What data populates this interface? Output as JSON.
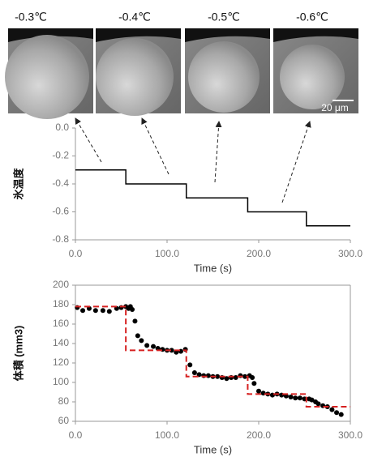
{
  "images": [
    {
      "label": "-0.3℃"
    },
    {
      "label": "-0.4℃"
    },
    {
      "label": "-0.5℃"
    },
    {
      "label": "-0.6℃"
    }
  ],
  "scale_bar": "20 μm",
  "chart_data": [
    {
      "type": "line",
      "ylabel": "氷温度",
      "xlabel": "Time (s)",
      "xlim": [
        0,
        300
      ],
      "xticks": [
        {
          "value": 0,
          "label": "0.0"
        },
        {
          "value": 100,
          "label": "100.0"
        },
        {
          "value": 200,
          "label": "200.0"
        },
        {
          "value": 300,
          "label": "300.0"
        }
      ],
      "ylim": [
        -0.8,
        0
      ],
      "yticks": [
        {
          "value": 0,
          "label": "0.0"
        },
        -0.2,
        -0.4,
        -0.6,
        -0.8
      ],
      "series": [
        {
          "type": "line",
          "color": "#000000",
          "x": [
            0,
            55,
            55,
            121,
            121,
            188,
            188,
            252,
            252,
            300
          ],
          "values": [
            -0.3,
            -0.3,
            -0.4,
            -0.4,
            -0.5,
            -0.5,
            -0.6,
            -0.6,
            -0.7,
            -0.7
          ]
        }
      ]
    },
    {
      "type": "scatter",
      "ylabel": "体積 (mm3)",
      "xlabel": "Time (s)",
      "xlim": [
        0,
        300
      ],
      "xticks": [
        {
          "value": 0,
          "label": "0.0"
        },
        {
          "value": 100,
          "label": "100.0"
        },
        {
          "value": 200,
          "label": "200.0"
        },
        {
          "value": 300,
          "label": "300.0"
        }
      ],
      "ylim": [
        60,
        200
      ],
      "yticks": [
        60,
        80,
        100,
        120,
        140,
        160,
        180,
        200
      ],
      "series": [
        {
          "type": "scatter",
          "color": "#000000",
          "x": [
            2,
            8,
            15,
            22,
            30,
            37,
            45,
            50,
            55,
            58,
            60,
            62,
            65,
            68,
            72,
            78,
            85,
            90,
            95,
            100,
            105,
            110,
            115,
            120,
            125,
            130,
            135,
            140,
            145,
            150,
            155,
            160,
            165,
            170,
            175,
            180,
            185,
            190,
            193,
            195,
            200,
            205,
            210,
            215,
            220,
            225,
            230,
            235,
            240,
            245,
            250,
            255,
            258,
            262,
            265,
            270,
            275,
            280,
            285,
            290
          ],
          "values": [
            177,
            174,
            176,
            174,
            174,
            173,
            176,
            177,
            178,
            176,
            178,
            175,
            163,
            148,
            143,
            138,
            137,
            135,
            134,
            133,
            133,
            131,
            132,
            134,
            118,
            110,
            108,
            107,
            107,
            106,
            106,
            105,
            104,
            105,
            105,
            107,
            106,
            107,
            105,
            99,
            91,
            89,
            88,
            87,
            88,
            87,
            86,
            85,
            84,
            84,
            83,
            83,
            82,
            80,
            78,
            76,
            75,
            72,
            69,
            67
          ]
        },
        {
          "type": "line",
          "color": "#d62020",
          "dashed": true,
          "x": [
            0,
            55,
            55,
            121,
            121,
            188,
            188,
            252,
            252,
            300
          ],
          "values": [
            178,
            178,
            133,
            133,
            106,
            106,
            88,
            88,
            75,
            75
          ]
        }
      ]
    }
  ]
}
